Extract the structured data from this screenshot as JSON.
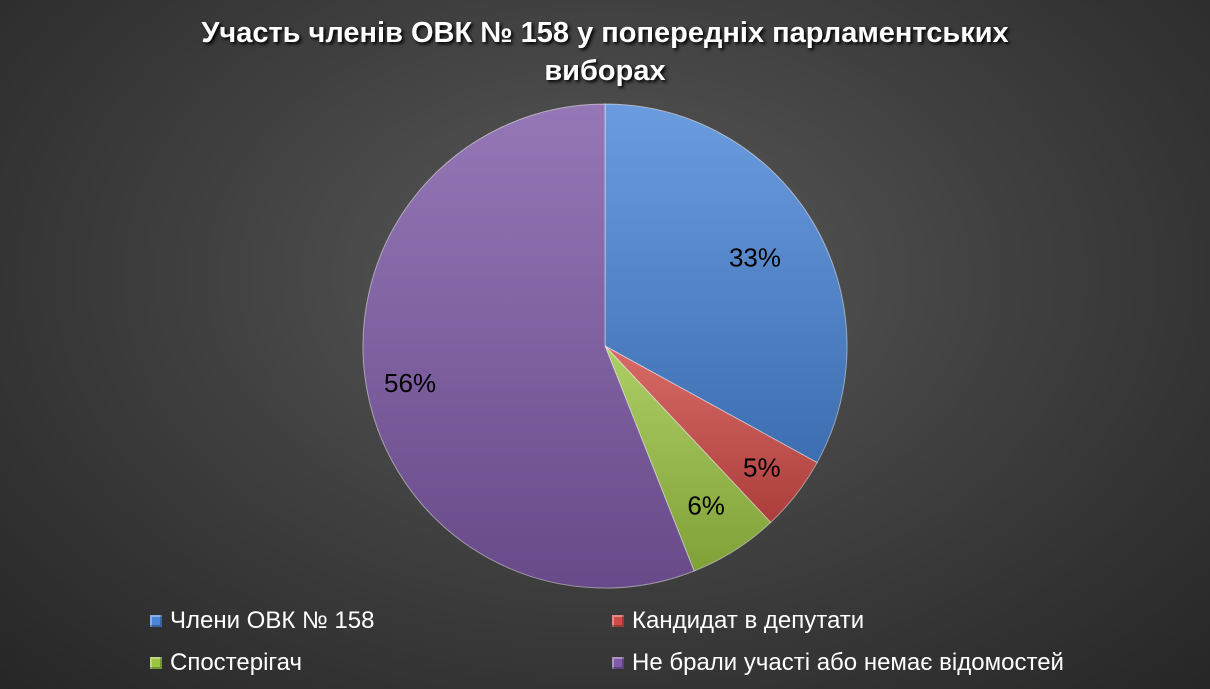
{
  "chart_data": {
    "type": "pie",
    "title": "Участь членів ОВК № 158 у попередніх парламентських виборах",
    "title_lines": [
      "Участь членів ОВК № 158 у попередніх парламентських",
      "виборах"
    ],
    "slices": [
      {
        "name": "Члени ОВК № 158",
        "value": 33,
        "label": "33%",
        "color": "#4a86d8"
      },
      {
        "name": "Кандидат в депутати",
        "value": 5,
        "label": "5%",
        "color": "#d04b47"
      },
      {
        "name": "Спостерігач",
        "value": 6,
        "label": "6%",
        "color": "#9bc443"
      },
      {
        "name": "Не брали участі або немає відомостей",
        "value": 56,
        "label": "56%",
        "color": "#7e5aa7"
      }
    ],
    "legend_position": "bottom"
  }
}
